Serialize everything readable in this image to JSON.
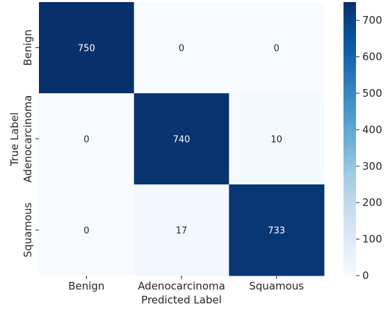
{
  "chart_data": {
    "type": "heatmap",
    "title": "",
    "xlabel": "Predicted Label",
    "ylabel": "True Label",
    "x_categories": [
      "Benign",
      "Adenocarcinoma",
      "Squamous"
    ],
    "y_categories": [
      "Benign",
      "Adenocarcinoma",
      "Squamous"
    ],
    "values": [
      [
        750,
        0,
        0
      ],
      [
        0,
        740,
        10
      ],
      [
        0,
        17,
        733
      ]
    ],
    "colormap": "Blues",
    "color_range": [
      0,
      750
    ],
    "colorbar_ticks": [
      0,
      100,
      200,
      300,
      400,
      500,
      600,
      700
    ],
    "colors": {
      "low": "#f7fbff",
      "high": "#08306b",
      "text_dark": "#262626",
      "text_light": "#ffffff"
    }
  }
}
